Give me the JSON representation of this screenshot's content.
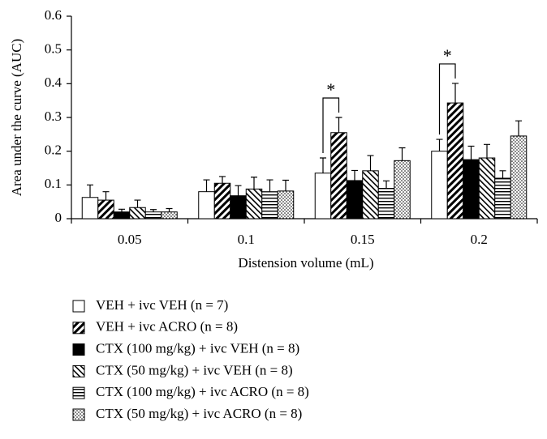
{
  "chart_data": {
    "type": "bar",
    "y_label": "Area under the curve (AUC)",
    "x_label": "Distension volume (mL)",
    "categories": [
      "0.05",
      "0.1",
      "0.15",
      "0.2"
    ],
    "ylim": [
      0,
      0.6
    ],
    "yticks": [
      0,
      0.1,
      0.2,
      0.3,
      0.4,
      0.5,
      0.6
    ],
    "series": [
      {
        "name": "VEH + ivc VEH (n = 7)",
        "color": "#ffffff",
        "pattern": "none",
        "values": [
          0.063,
          0.08,
          0.135,
          0.2
        ],
        "errors": [
          0.037,
          0.035,
          0.045,
          0.035
        ]
      },
      {
        "name": "VEH + ivc ACRO (n = 8)",
        "color": "#ffffff",
        "pattern": "diagonal-up",
        "values": [
          0.055,
          0.105,
          0.255,
          0.343
        ],
        "errors": [
          0.025,
          0.02,
          0.045,
          0.058
        ]
      },
      {
        "name": "CTX (100 mg/kg) + ivc VEH (n = 8)",
        "color": "#000000",
        "pattern": "solid",
        "values": [
          0.02,
          0.068,
          0.113,
          0.175
        ],
        "errors": [
          0.008,
          0.03,
          0.03,
          0.04
        ]
      },
      {
        "name": "CTX (50 mg/kg) + ivc VEH (n = 8)",
        "color": "#ffffff",
        "pattern": "diagonal-down",
        "values": [
          0.033,
          0.088,
          0.142,
          0.18
        ],
        "errors": [
          0.022,
          0.035,
          0.045,
          0.04
        ]
      },
      {
        "name": "CTX (100 mg/kg) + ivc ACRO (n = 8)",
        "color": "#ffffff",
        "pattern": "horizontal",
        "values": [
          0.02,
          0.08,
          0.09,
          0.12
        ],
        "errors": [
          0.007,
          0.035,
          0.022,
          0.022
        ]
      },
      {
        "name": "CTX (50 mg/kg) + ivc ACRO (n = 8)",
        "color": "#ffffff",
        "pattern": "dots",
        "values": [
          0.02,
          0.082,
          0.172,
          0.245
        ],
        "errors": [
          0.01,
          0.032,
          0.038,
          0.045
        ]
      }
    ],
    "annotations": [
      {
        "text": "*",
        "x": "0.15"
      },
      {
        "text": "*",
        "x": "0.2"
      }
    ]
  }
}
